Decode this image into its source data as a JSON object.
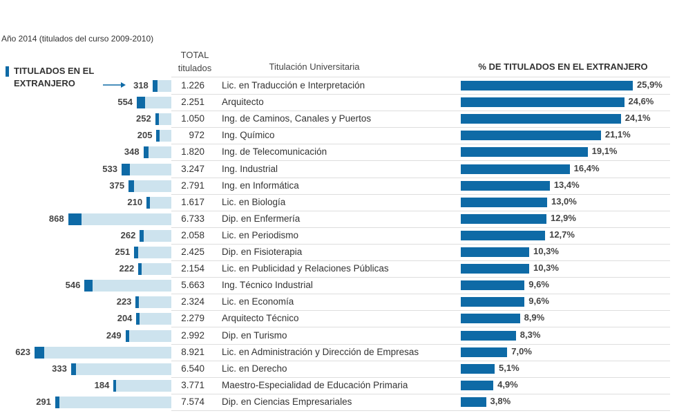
{
  "chart_data": {
    "type": "table-bars",
    "subtitle": "Año 2014 (titulados del curso 2009-2010)",
    "column_headers": {
      "total": "TOTAL titulados",
      "degree": "Titulación Universitaria",
      "percent": "% DE TITULADOS EN EL EXTRANJERO"
    },
    "categories": [
      "Lic. en Traducción e Interpretación",
      "Arquitecto",
      "Ing. de Caminos, Canales y Puertos",
      "Ing. Químico",
      "Ing. de Telecomunicación",
      "Ing. Industrial",
      "Ing. en Informática",
      "Lic. en Biología",
      "Dip. en Enfermería",
      "Lic. en Periodismo",
      "Dip. en Fisioterapia",
      "Lic. en Publicidad y Relaciones Públicas",
      "Ing. Técnico Industrial",
      "Lic. en Economía",
      "Arquitecto Técnico",
      "Dip. en Turismo",
      "Lic. en Administración y Dirección de Empresas",
      "Lic. en Derecho",
      "Maestro-Especialidad de Educación Primaria",
      "Dip. en Ciencias Empresariales"
    ],
    "series": [
      {
        "name": "TITULADOS EN EL EXTRANJERO",
        "color": "#0e6aa6",
        "values": [
          318,
          554,
          252,
          205,
          348,
          533,
          375,
          210,
          868,
          262,
          251,
          222,
          546,
          223,
          204,
          249,
          623,
          333,
          184,
          291
        ]
      },
      {
        "color": "#cde3ee",
        "values": [
          1226,
          2251,
          1050,
          972,
          1820,
          3247,
          2791,
          1617,
          6733,
          2058,
          2425,
          2154,
          5663,
          2324,
          2279,
          2992,
          8921,
          6540,
          3771,
          7574
        ],
        "value_labels": [
          "1.226",
          "2.251",
          "1.050",
          "972",
          "1.820",
          "3.247",
          "2.791",
          "1.617",
          "6.733",
          "2.058",
          "2.425",
          "2.154",
          "5.663",
          "2.324",
          "2.279",
          "2.992",
          "8.921",
          "6.540",
          "3.771",
          "7.574"
        ]
      },
      {
        "color": "#0e6aa6",
        "values": [
          25.9,
          24.6,
          24.1,
          21.1,
          19.1,
          16.4,
          13.4,
          13.0,
          12.9,
          12.7,
          10.3,
          10.3,
          9.6,
          9.6,
          8.9,
          8.3,
          7.0,
          5.1,
          4.9,
          3.8
        ],
        "value_labels": [
          "25,9%",
          "24,6%",
          "24,1%",
          "21,1%",
          "19,1%",
          "16,4%",
          "13,4%",
          "13,0%",
          "12,9%",
          "12,7%",
          "10,3%",
          "10,3%",
          "9,6%",
          "9,6%",
          "8,9%",
          "8,3%",
          "7,0%",
          "5,1%",
          "4,9%",
          "3,8%"
        ]
      }
    ]
  }
}
